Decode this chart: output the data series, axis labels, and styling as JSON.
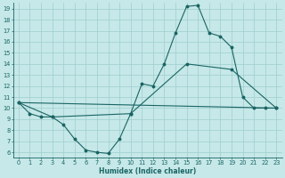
{
  "xlabel": "Humidex (Indice chaleur)",
  "bg_color": "#c6e8e8",
  "grid_color": "#9ecece",
  "line_color": "#1a6464",
  "xlim": [
    -0.5,
    23.5
  ],
  "ylim": [
    5.5,
    19.5
  ],
  "xticks": [
    0,
    1,
    2,
    3,
    4,
    5,
    6,
    7,
    8,
    9,
    10,
    11,
    12,
    13,
    14,
    15,
    16,
    17,
    18,
    19,
    20,
    21,
    22,
    23
  ],
  "yticks": [
    6,
    7,
    8,
    9,
    10,
    11,
    12,
    13,
    14,
    15,
    16,
    17,
    18,
    19
  ],
  "line1_x": [
    0,
    1,
    2,
    3,
    4,
    5,
    6,
    7,
    8,
    9,
    10,
    11,
    12,
    13,
    14,
    15,
    16,
    17,
    18,
    19,
    20,
    21,
    22,
    23
  ],
  "line1_y": [
    10.5,
    9.5,
    9.2,
    9.2,
    8.5,
    7.2,
    6.2,
    6.0,
    5.9,
    7.2,
    9.5,
    12.2,
    12.0,
    14.0,
    16.8,
    19.2,
    19.3,
    16.8,
    16.5,
    15.5,
    11.0,
    10.0,
    10.0,
    10.0
  ],
  "line2_x": [
    0,
    3,
    10,
    15,
    19,
    23
  ],
  "line2_y": [
    10.5,
    9.2,
    9.5,
    14.0,
    13.5,
    10.0
  ],
  "line3_x": [
    0,
    23
  ],
  "line3_y": [
    10.5,
    10.0
  ],
  "xlabel_fontsize": 5.5,
  "tick_fontsize": 4.8,
  "linewidth": 0.8,
  "markersize": 1.8
}
